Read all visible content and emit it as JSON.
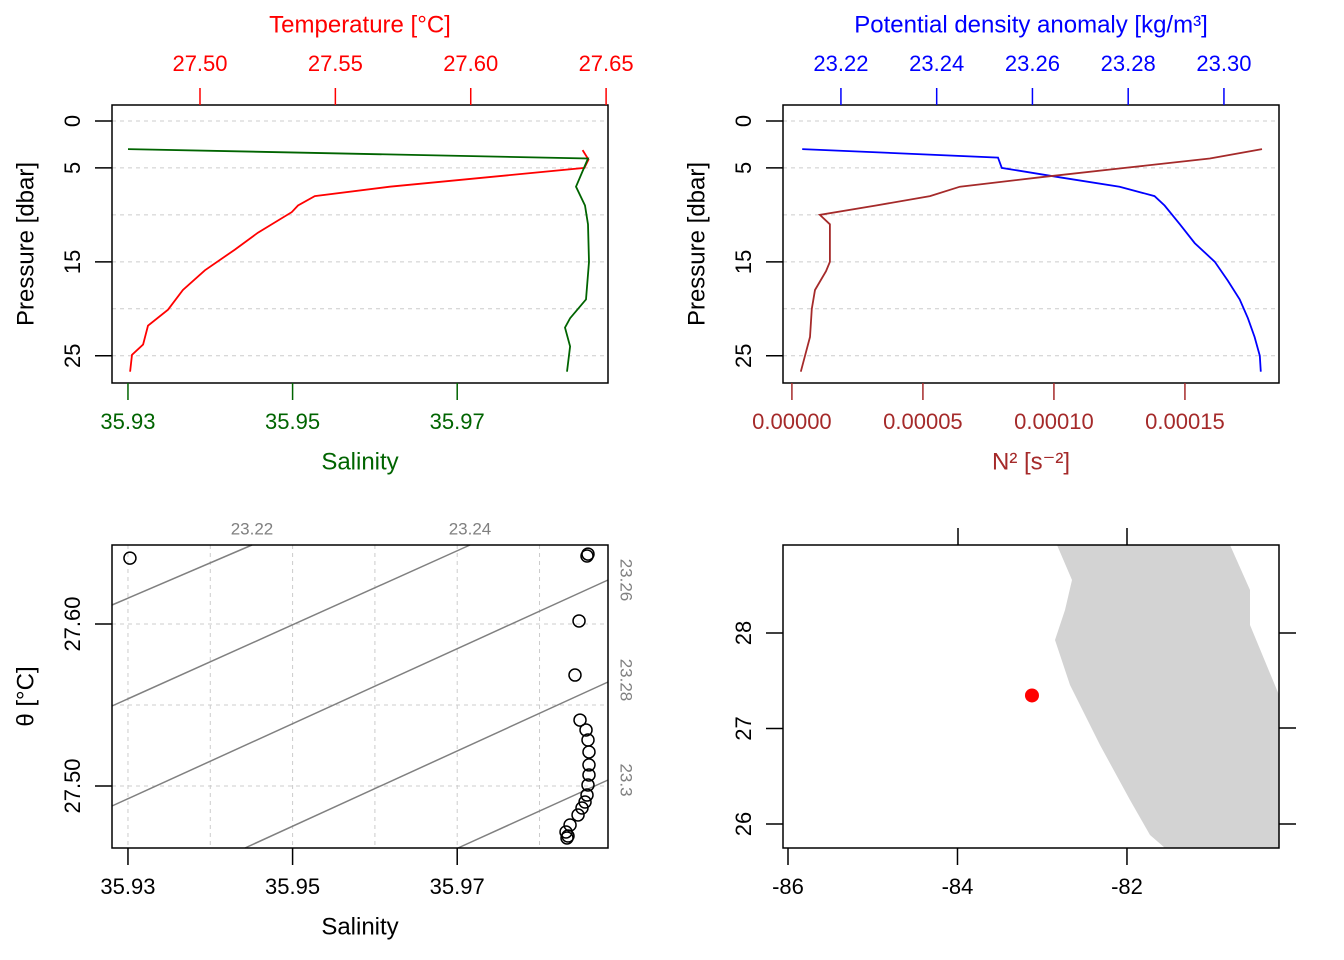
{
  "chart_data": [
    {
      "type": "profile",
      "ylabel": "Pressure [dbar]",
      "ylim": [
        27.9,
        -1.7
      ],
      "yticks": [
        0,
        5,
        15,
        25
      ],
      "ygrid": [
        0,
        5,
        10,
        15,
        20,
        25
      ],
      "xlabel": "Salinity",
      "xlim": [
        35.92806,
        35.98832
      ],
      "xticks": [
        35.93,
        35.95,
        35.97
      ],
      "x2label": "Temperature [°C]",
      "x2lim": [
        27.4675,
        27.6507
      ],
      "x2ticks": [
        {
          "value": 27.5,
          "label": "27.50"
        },
        27.55,
        {
          "value": 27.6,
          "label": "27.60"
        },
        27.65
      ],
      "series": [
        {
          "color": "#ff0000",
          "axis": "x2",
          "pressure": [
            3.1,
            4.1,
            5,
            7,
            8,
            9,
            9.7,
            11.9,
            13.7,
            15.9,
            18,
            20.1,
            21.8,
            23.8,
            24.9,
            26.7
          ],
          "values": [
            27.6413,
            27.6435,
            27.642,
            27.5701,
            27.5424,
            27.5362,
            27.5339,
            27.5214,
            27.5129,
            27.5018,
            27.4937,
            27.4882,
            27.4808,
            27.479,
            27.4749,
            27.4742
          ]
        },
        {
          "color": "#006400",
          "axis": "x",
          "pressure": [
            3,
            4,
            5,
            7,
            9,
            11,
            15,
            19,
            21,
            22,
            24,
            26.7
          ],
          "values": [
            35.93,
            35.98589,
            35.98541,
            35.98443,
            35.98553,
            35.98589,
            35.98601,
            35.98565,
            35.98371,
            35.9831,
            35.98371,
            35.98334
          ]
        }
      ]
    },
    {
      "type": "profile",
      "ylabel": "Pressure [dbar]",
      "ylim": [
        27.9,
        -1.7
      ],
      "yticks": [
        0,
        5,
        15,
        25
      ],
      "ygrid": [
        0,
        5,
        10,
        15,
        20,
        25
      ],
      "xlabel": "N² [s⁻²]",
      "xlim": [
        -3.4e-06,
        0.0001859
      ],
      "xticks": [
        {
          "value": 0,
          "label": "0.00000"
        },
        {
          "value": 5e-05,
          "label": "0.00005"
        },
        {
          "value": 0.0001,
          "label": "0.00010"
        },
        {
          "value": 0.00015,
          "label": "0.00015"
        }
      ],
      "x2label": "Potential density anomaly [kg/m³]",
      "x2lim": [
        23.2079,
        23.3115
      ],
      "x2ticks": [
        23.22,
        23.24,
        23.26,
        23.28,
        {
          "value": 23.3,
          "label": "23.30"
        }
      ],
      "series": [
        {
          "color": "#0000ff",
          "axis": "x2",
          "pressure": [
            3,
            3.9,
            5,
            6,
            7,
            8,
            9,
            11,
            13,
            15,
            17,
            19,
            21,
            23,
            25,
            26.7
          ],
          "values": [
            23.2119,
            23.2528,
            23.2536,
            23.2657,
            23.2782,
            23.2855,
            23.2876,
            23.2908,
            23.2939,
            23.2981,
            23.3008,
            23.3033,
            23.305,
            23.3064,
            23.3075,
            23.3077
          ]
        },
        {
          "color": "#a52a2a",
          "axis": "x",
          "pressure": [
            3,
            4,
            5,
            6,
            7,
            8,
            9,
            10,
            11,
            13,
            15,
            16,
            18,
            20,
            23,
            25,
            26.7
          ],
          "values": [
            0.0001794,
            0.0001595,
            0.0001271,
            9.47e-05,
            6.41e-05,
            5.27e-05,
            3.21e-05,
            1.07e-05,
            1.45e-05,
            1.45e-05,
            1.45e-05,
            1.3e-05,
            8.8e-06,
            7.6e-06,
            6.9e-06,
            5e-06,
            3.4e-06
          ]
        }
      ]
    },
    {
      "type": "ts",
      "xlabel": "Salinity",
      "xlim": [
        35.92806,
        35.98832
      ],
      "xticks": [
        35.93,
        35.95,
        35.97
      ],
      "xgrid": [
        35.93,
        35.94,
        35.95,
        35.96,
        35.97,
        35.98
      ],
      "ylabel": "θ [°C]",
      "ylim": [
        27.4617,
        27.6488
      ],
      "yticks": [
        {
          "value": 27.5,
          "label": "27.50"
        },
        {
          "value": 27.6,
          "label": "27.60"
        }
      ],
      "ygrid": [
        27.5,
        27.55,
        27.6
      ],
      "isopycnals": [
        23.22,
        23.24,
        23.26,
        23.28,
        23.3
      ],
      "x": [
        35.93024,
        35.98577,
        35.98589,
        35.9848,
        35.98431,
        35.98492,
        35.98565,
        35.98589,
        35.98601,
        35.98601,
        35.98601,
        35.98589,
        35.98577,
        35.98553,
        35.98516,
        35.98468,
        35.98371,
        35.98322,
        35.98346,
        35.98334
      ],
      "values": [
        27.6407,
        27.642,
        27.6432,
        27.6019,
        27.5685,
        27.5407,
        27.5346,
        27.5284,
        27.521,
        27.513,
        27.5068,
        27.5006,
        27.4944,
        27.4901,
        27.4864,
        27.4821,
        27.4759,
        27.4716,
        27.4691,
        27.4679
      ]
    },
    {
      "type": "map",
      "xlim": [
        -86.059,
        -80.206
      ],
      "xticks": [
        -86,
        -84,
        -82
      ],
      "ylim": [
        25.749,
        28.921
      ],
      "yticks": [
        28,
        27,
        26
      ],
      "land_color": "#d3d3d3",
      "lon": [
        -83.121
      ],
      "lat": [
        27.346
      ],
      "color": "#ff0000"
    }
  ]
}
